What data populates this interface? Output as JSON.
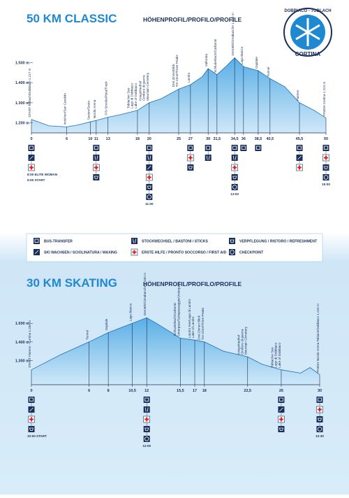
{
  "logo": {
    "top": "DOBBIACO - TOBLACH",
    "bottom": "CORTINA"
  },
  "legend": [
    "BUS-TRANSFER",
    "SKI WACHSEN / SCIOLINATURA / WAXING",
    "STOCKWECHSEL / BASTONI / STICKS",
    "ERSTE HILFE / PRONTO SOCCORSO / FIRST AID",
    "VERPFLEGUNG / RISTORO / REFRESHMENT",
    "CHECKPOINT"
  ],
  "chart_data": [
    {
      "type": "area",
      "title": "50 KM CLASSIC",
      "subtitle": "HÖHENPROFIL/PROFILO/PROFILE",
      "x": [
        0,
        3,
        6,
        8,
        10,
        11,
        13,
        15,
        18,
        20,
        22,
        25,
        27,
        29,
        30,
        31.5,
        33,
        34.5,
        36,
        38.5,
        40.5,
        43,
        45.5,
        48,
        50
      ],
      "values": [
        1217,
        1185,
        1180,
        1190,
        1205,
        1212,
        1228,
        1240,
        1262,
        1300,
        1320,
        1368,
        1390,
        1430,
        1470,
        1440,
        1480,
        1524,
        1480,
        1460,
        1420,
        1380,
        1300,
        1262,
        1224
      ],
      "xlim": [
        0,
        50
      ],
      "ylim": [
        1150,
        1620
      ],
      "xticks": [
        0,
        6,
        10,
        11,
        13,
        18,
        20,
        25,
        27,
        30,
        {
          "value": 31.5,
          "label": "31,5"
        },
        {
          "value": 34.5,
          "label": "34,5"
        },
        36,
        {
          "value": 38.5,
          "label": "38,5"
        },
        {
          "value": 40.5,
          "label": "40,5"
        },
        {
          "value": 45.5,
          "label": "45,5"
        },
        50
      ],
      "yticks": [
        {
          "value": 1200,
          "label": "1.200 m"
        },
        {
          "value": 1300,
          "label": "1.300 m"
        },
        {
          "value": 1400,
          "label": "1.400 m"
        },
        {
          "value": 1500,
          "label": "1.500 m"
        }
      ],
      "color": "#5aaee6",
      "grid": false,
      "annotations": [
        {
          "x": 0,
          "lines": [
            "START Toblach/Dobbiaco 1.217 m"
          ]
        },
        {
          "x": 6,
          "lines": [
            "Innichen/San Candido"
          ]
        },
        {
          "x": 10,
          "lines": [
            "Sexten/Sesto"
          ]
        },
        {
          "x": 11,
          "lines": [
            "Nordic Arena"
          ]
        },
        {
          "x": 13,
          "lines": [
            "FIS-Strecke/Pista/Track"
          ]
        },
        {
          "x": 18,
          "lines": [
            "Toblacher See",
            "Lago di Dobbiaco",
            "Lake of Dobbiaco"
          ]
        },
        {
          "x": 20,
          "lines": [
            "Kriegsfriedhof",
            "Cimitero di guerra",
            "Mountain Cemetery"
          ]
        },
        {
          "x": 25,
          "lines": [
            "Drei Zinnenblick",
            "Tre Cime/Three Peaks"
          ]
        },
        {
          "x": 27,
          "lines": [
            "Landro"
          ]
        },
        {
          "x": 30,
          "lines": [
            "Valforata"
          ]
        },
        {
          "x": 31.5,
          "lines": [
            "Schluderbach/Carbonin"
          ]
        },
        {
          "x": 34.5,
          "lines": [
            "Gemärk/Cimabanche 1.524 m"
          ]
        },
        {
          "x": 36,
          "lines": [
            "Lago Bianco"
          ]
        },
        {
          "x": 38.5,
          "lines": [
            "Ospitale"
          ]
        },
        {
          "x": 40.5,
          "lines": [
            "Tunnel"
          ]
        },
        {
          "x": 45.5,
          "lines": [
            "Fiames"
          ]
        },
        {
          "x": 50,
          "lines": [
            "FINISH Cortina 1.224 m"
          ]
        }
      ],
      "notes": [
        {
          "x": 0,
          "label": "8:00 ELITE WOMAN"
        },
        {
          "x": 0,
          "label": "9:00 START"
        },
        {
          "x": 20,
          "label": "11:00"
        },
        {
          "x": 34.5,
          "label": "13:00"
        },
        {
          "x": 50,
          "label": "15:00"
        }
      ]
    },
    {
      "type": "area",
      "title": "30 KM SKATING",
      "subtitle": "HÖHENPROFIL/PROFILO/PROFILE",
      "x": [
        0,
        3,
        6,
        8,
        10.5,
        12,
        13,
        15.5,
        17,
        18,
        20,
        22.5,
        24,
        26,
        28,
        29,
        30
      ],
      "values": [
        1250,
        1330,
        1400,
        1450,
        1500,
        1530,
        1500,
        1420,
        1410,
        1400,
        1350,
        1320,
        1280,
        1250,
        1232,
        1262,
        1224
      ],
      "xlim": [
        0,
        30
      ],
      "ylim": [
        1170,
        1640
      ],
      "xticks": [
        0,
        6,
        8,
        {
          "value": 10.5,
          "label": "10,5"
        },
        12,
        {
          "value": 15.5,
          "label": "15,5"
        },
        17,
        18,
        {
          "value": 22.5,
          "label": "22,5"
        },
        26,
        30
      ],
      "yticks": [
        {
          "value": 1300,
          "label": "1.300 m"
        },
        {
          "value": 1400,
          "label": "1.400 m"
        },
        {
          "value": 1500,
          "label": "1.500 m"
        }
      ],
      "color": "#5aaee6",
      "grid": false,
      "annotations": [
        {
          "x": 0,
          "lines": [
            "START Fiames - Cortina 1.250 m"
          ]
        },
        {
          "x": 6,
          "lines": [
            "Tunnel"
          ]
        },
        {
          "x": 8,
          "lines": [
            "Ospitale"
          ]
        },
        {
          "x": 10.5,
          "lines": [
            "Lago Bianco"
          ]
        },
        {
          "x": 12,
          "lines": [
            "Gemärk/Cimabanche 1.530 m"
          ]
        },
        {
          "x": 15.5,
          "lines": [
            "Schluderbach/Carbonin",
            "Unterpass/Sottopassaggio/Underpass"
          ]
        },
        {
          "x": 17,
          "lines": [
            "Landro See/Lago di Landro",
            "Lake of Landro"
          ]
        },
        {
          "x": 18,
          "lines": [
            "Drei Zinnen Blick",
            "Tre Cime/Three Peaks"
          ]
        },
        {
          "x": 22.5,
          "lines": [
            "Kriegsfriedhof",
            "Cimitero di guerra",
            "Mountain Cemetery"
          ]
        },
        {
          "x": 26,
          "lines": [
            "Toblacher See",
            "Lago di Dobbiaco",
            "Lake of Dobbiaco"
          ]
        },
        {
          "x": 30,
          "lines": [
            "FINISH Nordic Arena Toblach/Dobbiaco 1.224 m"
          ]
        }
      ],
      "notes": [
        {
          "x": 0,
          "label": "10:00 START"
        },
        {
          "x": 12,
          "label": "12:00"
        },
        {
          "x": 30,
          "label": "13:30"
        }
      ]
    }
  ]
}
